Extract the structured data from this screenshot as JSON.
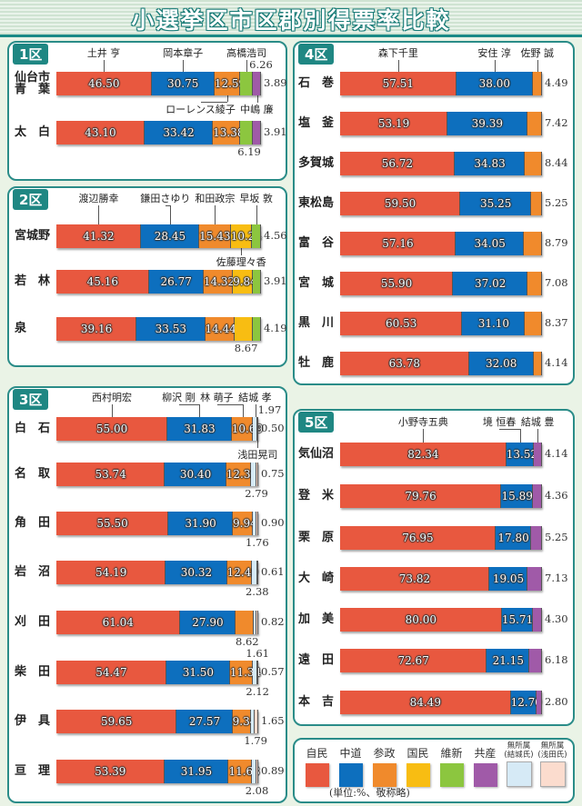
{
  "chart_data": {
    "type": "bar",
    "stacked": true,
    "title": "小選挙区市区郡別得票率比較",
    "unit_note": "(単位:%、敬称略)",
    "parties": [
      {
        "key": "jimin",
        "name": "自民",
        "color": "#e8583f"
      },
      {
        "key": "chudo",
        "name": "中道",
        "color": "#0d6fbe"
      },
      {
        "key": "sansei",
        "name": "参政",
        "color": "#f08a2c"
      },
      {
        "key": "kokumin",
        "name": "国民",
        "color": "#f8bd12"
      },
      {
        "key": "ishin",
        "name": "維新",
        "color": "#8cc63f"
      },
      {
        "key": "kyosan",
        "name": "共産",
        "color": "#a05aa8"
      },
      {
        "key": "yuki",
        "name": "無所属",
        "sub": "(結城氏)",
        "color": "#d6eaf6"
      },
      {
        "key": "asada",
        "name": "無所属",
        "sub": "(浅田氏)",
        "color": "#fbdcce"
      }
    ],
    "districts": [
      {
        "label": "1区",
        "candidates": [
          {
            "name": "土井 亨",
            "party": "jimin"
          },
          {
            "name": "岡本章子",
            "party": "chudo"
          },
          {
            "name": "ローレンス綾子",
            "party": "sansei"
          },
          {
            "name": "高橋浩司",
            "party": "ishin"
          },
          {
            "name": "中嶋 廉",
            "party": "kyosan"
          }
        ],
        "rows": [
          {
            "area": "仙台市\n青　葉",
            "values": [
              46.5,
              30.75,
              12.59,
              6.26,
              3.89
            ]
          },
          {
            "area": "太　白",
            "values": [
              43.1,
              33.42,
              13.38,
              6.19,
              3.91
            ]
          }
        ]
      },
      {
        "label": "2区",
        "candidates": [
          {
            "name": "渡辺勝幸",
            "party": "jimin"
          },
          {
            "name": "鎌田さゆり",
            "party": "chudo"
          },
          {
            "name": "和田政宗",
            "party": "sansei"
          },
          {
            "name": "佐藤理々香",
            "party": "kokumin"
          },
          {
            "name": "早坂 敦",
            "party": "ishin"
          }
        ],
        "rows": [
          {
            "area": "宮城野",
            "values": [
              41.32,
              28.45,
              15.43,
              10.24,
              4.56
            ]
          },
          {
            "area": "若　林",
            "values": [
              45.16,
              26.77,
              14.32,
              9.84,
              3.91
            ]
          },
          {
            "area": "泉",
            "values": [
              39.16,
              33.53,
              14.44,
              8.67,
              4.19
            ]
          }
        ]
      },
      {
        "label": "3区",
        "candidates": [
          {
            "name": "西村明宏",
            "party": "jimin"
          },
          {
            "name": "柳沢 剛",
            "party": "chudo"
          },
          {
            "name": "林 萌子",
            "party": "sansei"
          },
          {
            "name": "結城 孝",
            "party": "yuki"
          },
          {
            "name": "浅田晃司",
            "party": "asada"
          }
        ],
        "rows": [
          {
            "area": "白　石",
            "values": [
              55.0,
              31.83,
              10.69,
              1.97,
              0.5
            ]
          },
          {
            "area": "名　取",
            "values": [
              53.74,
              30.4,
              12.32,
              2.79,
              0.75
            ]
          },
          {
            "area": "角　田",
            "values": [
              55.5,
              31.9,
              9.94,
              1.76,
              0.9
            ]
          },
          {
            "area": "岩　沼",
            "values": [
              54.19,
              30.32,
              12.49,
              2.38,
              0.61
            ]
          },
          {
            "area": "刈　田",
            "values": [
              61.04,
              27.9,
              8.62,
              1.61,
              0.82
            ]
          },
          {
            "area": "柴　田",
            "values": [
              54.47,
              31.5,
              11.34,
              2.12,
              0.57
            ]
          },
          {
            "area": "伊　具",
            "values": [
              59.65,
              27.57,
              9.34,
              1.79,
              1.65
            ]
          },
          {
            "area": "亘　理",
            "values": [
              53.39,
              31.95,
              11.68,
              2.08,
              0.89
            ]
          }
        ]
      },
      {
        "label": "4区",
        "candidates": [
          {
            "name": "森下千里",
            "party": "jimin"
          },
          {
            "name": "安住 淳",
            "party": "chudo"
          },
          {
            "name": "佐野 誠",
            "party": "sansei"
          }
        ],
        "rows": [
          {
            "area": "石　巻",
            "values": [
              57.51,
              38.0,
              4.49
            ]
          },
          {
            "area": "塩　釜",
            "values": [
              53.19,
              39.39,
              7.42
            ]
          },
          {
            "area": "多賀城",
            "values": [
              56.72,
              34.83,
              8.44
            ]
          },
          {
            "area": "東松島",
            "values": [
              59.5,
              35.25,
              5.25
            ]
          },
          {
            "area": "富　谷",
            "values": [
              57.16,
              34.05,
              8.79
            ]
          },
          {
            "area": "宮　城",
            "values": [
              55.9,
              37.02,
              7.08
            ]
          },
          {
            "area": "黒　川",
            "values": [
              60.53,
              31.1,
              8.37
            ]
          },
          {
            "area": "牡　鹿",
            "values": [
              63.78,
              32.08,
              4.14
            ]
          }
        ]
      },
      {
        "label": "5区",
        "candidates": [
          {
            "name": "小野寺五典",
            "party": "jimin"
          },
          {
            "name": "境 恒春",
            "party": "chudo"
          },
          {
            "name": "結城 豊",
            "party": "kyosan"
          }
        ],
        "rows": [
          {
            "area": "気仙沼",
            "values": [
              82.34,
              13.52,
              4.14
            ]
          },
          {
            "area": "登　米",
            "values": [
              79.76,
              15.89,
              4.36
            ]
          },
          {
            "area": "栗　原",
            "values": [
              76.95,
              17.8,
              5.25
            ]
          },
          {
            "area": "大　崎",
            "values": [
              73.82,
              19.05,
              7.13
            ]
          },
          {
            "area": "加　美",
            "values": [
              80.0,
              15.71,
              4.3
            ]
          },
          {
            "area": "遠　田",
            "values": [
              72.67,
              21.15,
              6.18
            ]
          },
          {
            "area": "本　吉",
            "values": [
              84.49,
              12.7,
              2.8
            ]
          }
        ]
      }
    ]
  }
}
